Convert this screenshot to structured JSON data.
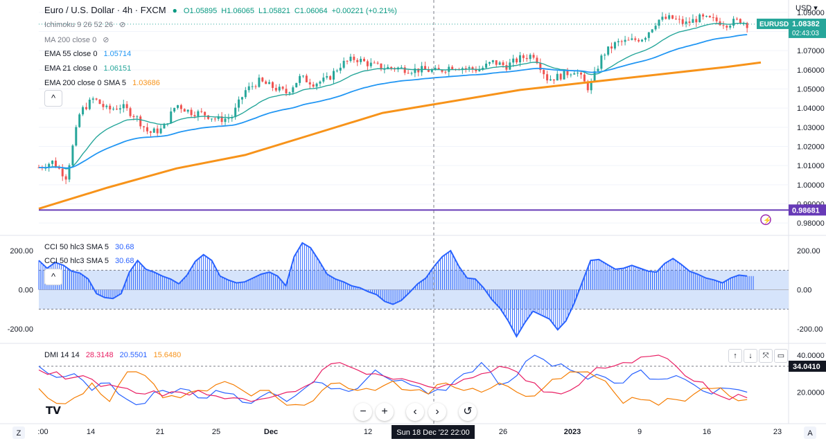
{
  "header": {
    "title": "Euro / U.S. Dollar · 4h · FXCM",
    "ohlc": {
      "o": "O1.05895",
      "h": "H1.06065",
      "l": "L1.05821",
      "c": "C1.06064",
      "chg": "+0.00221 (+0.21%)"
    },
    "currency": "USD"
  },
  "legend": {
    "ichimoku": "Ichimoku 9 26 52 26",
    "ma200": "MA 200 close 0",
    "ema55": {
      "label": "EMA 55 close 0",
      "value": "1.05714"
    },
    "ema21": {
      "label": "EMA 21 close 0",
      "value": "1.06151"
    },
    "ema200": {
      "label": "EMA 200 close 0 SMA 5",
      "value": "1.03686"
    },
    "cci_1": {
      "label": "CCI 50 hlc3 SMA 5",
      "value": "30.68"
    },
    "cci_2": {
      "label": "CCI 50 hlc3 SMA 5",
      "value": "30.68"
    },
    "dmi": {
      "label": "DMI 14 14",
      "v1": "28.3148",
      "v2": "20.5501",
      "v3": "15.6480"
    }
  },
  "price_axis": {
    "ticks": [
      "1.09000",
      "1.08000",
      "1.07000",
      "1.06000",
      "1.05000",
      "1.04000",
      "1.03000",
      "1.02000",
      "1.01000",
      "1.00000",
      "0.99000",
      "0.98000"
    ],
    "symbol_tag": "EURUSD",
    "last_price": "1.08382",
    "countdown": "02:43:03",
    "line_price": "0.98681"
  },
  "cci_axis": {
    "ticks": [
      "200.00",
      "0.00",
      "-200.00"
    ],
    "left_ticks": [
      "200.00",
      "0.00",
      "-200.00"
    ]
  },
  "dmi_axis": {
    "ticks": [
      "40.0000",
      "20.0000"
    ],
    "badge": "34.0410"
  },
  "time_axis": {
    "labels": [
      ":00",
      "14",
      "21",
      "25",
      "Dec",
      "12",
      "19",
      "26",
      "2023",
      "9",
      "16",
      "23"
    ],
    "crosshair_label": "Sun 18 Dec '22   22:00",
    "left_button": "Z",
    "right_button": "A"
  },
  "controls": {
    "zoom_out": "−",
    "zoom_in": "+",
    "prev": "‹",
    "next": "›",
    "reset": "↺",
    "collapse": "^"
  },
  "colors": {
    "up": "#26a69a",
    "down": "#ef5350",
    "ema21": "#26a69a",
    "ema55": "#2196f3",
    "ema200": "#f7931a",
    "hline": "#673ab7",
    "cci": "#2962ff",
    "dmi_plus": "#2962ff",
    "dmi_minus": "#f57c00",
    "adx": "#e91e63"
  },
  "chart_data": [
    {
      "type": "candlestick",
      "title": "Euro / U.S. Dollar · 4h · FXCM",
      "ylim": [
        0.975,
        1.095
      ],
      "x_ticks": [
        ":00",
        "14",
        "21",
        "25",
        "Dec",
        "12",
        "19",
        "26",
        "2023",
        "9",
        "16",
        "23"
      ],
      "close_path": [
        [
          0,
          1.009
        ],
        [
          20,
          1.012
        ],
        [
          40,
          1.004
        ],
        [
          60,
          1.038
        ],
        [
          80,
          1.045
        ],
        [
          100,
          1.039
        ],
        [
          120,
          1.041
        ],
        [
          140,
          1.036
        ],
        [
          160,
          1.027
        ],
        [
          180,
          1.029
        ],
        [
          200,
          1.042
        ],
        [
          220,
          1.038
        ],
        [
          240,
          1.037
        ],
        [
          260,
          1.034
        ],
        [
          280,
          1.035
        ],
        [
          300,
          1.049
        ],
        [
          320,
          1.054
        ],
        [
          340,
          1.051
        ],
        [
          360,
          1.048
        ],
        [
          380,
          1.056
        ],
        [
          400,
          1.053
        ],
        [
          420,
          1.055
        ],
        [
          440,
          1.063
        ],
        [
          460,
          1.066
        ],
        [
          480,
          1.063
        ],
        [
          500,
          1.061
        ],
        [
          520,
          1.061
        ],
        [
          540,
          1.06
        ],
        [
          560,
          1.06
        ],
        [
          580,
          1.059
        ],
        [
          600,
          1.062
        ],
        [
          620,
          1.061
        ],
        [
          640,
          1.06
        ],
        [
          660,
          1.064
        ],
        [
          680,
          1.062
        ],
        [
          700,
          1.066
        ],
        [
          720,
          1.068
        ],
        [
          740,
          1.055
        ],
        [
          760,
          1.057
        ],
        [
          780,
          1.06
        ],
        [
          800,
          1.05
        ],
        [
          820,
          1.068
        ],
        [
          840,
          1.074
        ],
        [
          860,
          1.075
        ],
        [
          880,
          1.077
        ],
        [
          900,
          1.086
        ],
        [
          920,
          1.087
        ],
        [
          940,
          1.084
        ],
        [
          960,
          1.087
        ],
        [
          980,
          1.086
        ],
        [
          1000,
          1.084
        ],
        [
          1020,
          1.086
        ],
        [
          1030,
          1.0838
        ]
      ],
      "series": [
        {
          "name": "EMA 21 close 0",
          "value": 1.06151
        },
        {
          "name": "EMA 55 close 0",
          "value": 1.05714
        },
        {
          "name": "EMA 200 close 0 SMA 5",
          "value": 1.03686
        }
      ],
      "ema200_path": [
        [
          0,
          0.9875
        ],
        [
          100,
          0.9985
        ],
        [
          200,
          1.0085
        ],
        [
          300,
          1.0155
        ],
        [
          400,
          1.0265
        ],
        [
          500,
          1.0375
        ],
        [
          600,
          1.0435
        ],
        [
          700,
          1.0495
        ],
        [
          800,
          1.0535
        ],
        [
          900,
          1.0575
        ],
        [
          1000,
          1.0615
        ],
        [
          1050,
          1.0638
        ]
      ],
      "hline": 0.98681,
      "last_price": 1.08382
    },
    {
      "type": "bar",
      "title": "CCI 50 hlc3 SMA 5",
      "ylim": [
        -275,
        275
      ],
      "band": [
        -100,
        100
      ],
      "values": [
        150,
        110,
        140,
        125,
        95,
        85,
        55,
        -20,
        -40,
        -45,
        -20,
        90,
        150,
        105,
        90,
        70,
        55,
        30,
        75,
        145,
        180,
        150,
        70,
        50,
        35,
        40,
        60,
        80,
        90,
        70,
        20,
        170,
        240,
        215,
        150,
        80,
        55,
        40,
        20,
        10,
        -10,
        -25,
        -60,
        -75,
        -55,
        -15,
        30,
        60,
        120,
        170,
        200,
        120,
        60,
        55,
        10,
        -50,
        -95,
        -160,
        -240,
        -170,
        -110,
        -130,
        -150,
        -205,
        -160,
        -70,
        40,
        150,
        155,
        130,
        105,
        110,
        125,
        110,
        95,
        90,
        135,
        160,
        130,
        95,
        80,
        60,
        50,
        35,
        60,
        75,
        70
      ]
    },
    {
      "type": "line",
      "title": "DMI 14 14",
      "ylim": [
        3,
        46
      ],
      "series": [
        {
          "name": "DMI 14 14",
          "values": [
            34,
            28,
            30,
            21,
            25,
            16,
            14,
            21,
            22,
            17,
            21,
            19,
            14,
            20,
            15,
            22,
            25,
            22,
            22,
            32,
            26,
            24,
            19,
            21,
            30,
            36,
            24,
            29,
            40,
            34,
            32,
            27,
            28,
            25,
            32,
            27,
            29,
            24,
            19,
            22,
            20
          ]
        },
        {
          "name": "DMI 14 14",
          "values": [
            22,
            14,
            17,
            25,
            15,
            31,
            29,
            17,
            17,
            21,
            24,
            24,
            18,
            21,
            13,
            13,
            21,
            25,
            21,
            21,
            26,
            21,
            19,
            25,
            21,
            20,
            25,
            20,
            18,
            27,
            31,
            31,
            26,
            14,
            16,
            13,
            16,
            19,
            22,
            18,
            16
          ]
        },
        {
          "name": "DMI 14 14",
          "values": [
            32,
            31,
            28,
            27,
            24,
            22,
            19,
            18,
            20,
            21,
            18,
            17,
            15,
            17,
            20,
            23,
            32,
            36,
            32,
            30,
            27,
            26,
            23,
            24,
            27,
            30,
            34,
            31,
            25,
            20,
            21,
            29,
            33,
            36,
            39,
            40,
            34,
            26,
            20,
            16,
            17
          ]
        }
      ]
    }
  ]
}
